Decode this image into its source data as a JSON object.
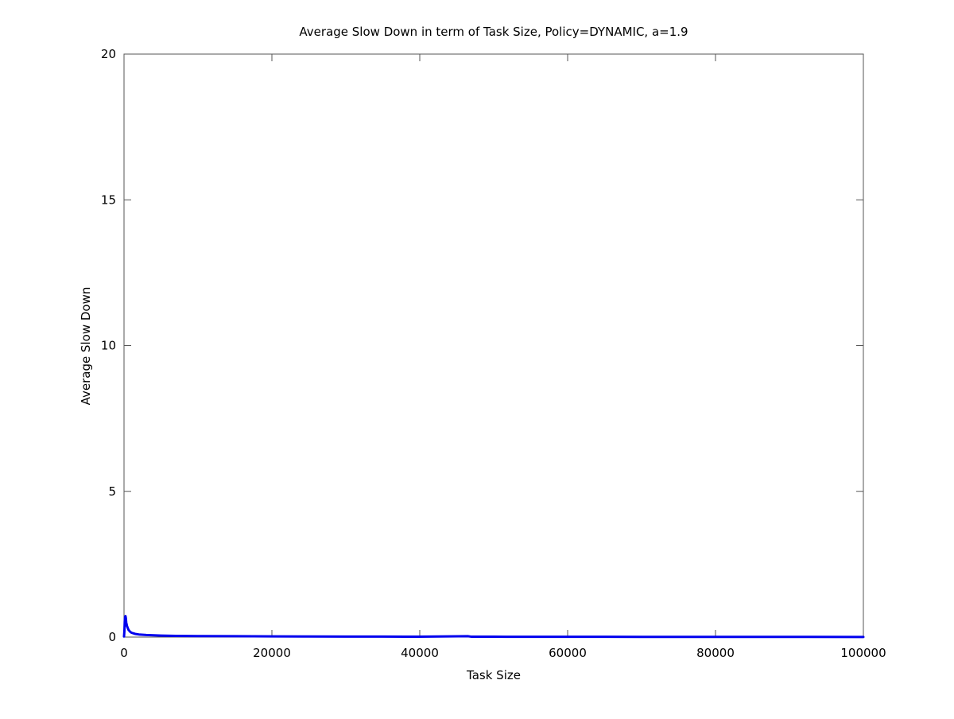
{
  "chart_data": {
    "type": "line",
    "title": "Average Slow Down in term of Task Size, Policy=DYNAMIC, a=1.9",
    "xlabel": "Task Size",
    "ylabel": "Average Slow Down",
    "xlim": [
      0,
      100000
    ],
    "ylim": [
      0,
      20
    ],
    "x_ticks": [
      0,
      20000,
      40000,
      60000,
      80000,
      100000
    ],
    "y_ticks": [
      0,
      5,
      10,
      15,
      20
    ],
    "grid": false,
    "legend": "none",
    "series": [
      {
        "color": "#0000ee",
        "points": [
          [
            0,
            0.02
          ],
          [
            50,
            0.2
          ],
          [
            100,
            0.55
          ],
          [
            150,
            0.7
          ],
          [
            200,
            0.72
          ],
          [
            250,
            0.65
          ],
          [
            300,
            0.5
          ],
          [
            400,
            0.38
          ],
          [
            600,
            0.25
          ],
          [
            800,
            0.19
          ],
          [
            1000,
            0.15
          ],
          [
            1500,
            0.11
          ],
          [
            2000,
            0.09
          ],
          [
            3000,
            0.07
          ],
          [
            4000,
            0.06
          ],
          [
            5000,
            0.05
          ],
          [
            7000,
            0.04
          ],
          [
            10000,
            0.035
          ],
          [
            15000,
            0.03
          ],
          [
            20000,
            0.025
          ],
          [
            25000,
            0.02
          ],
          [
            30000,
            0.018
          ],
          [
            35000,
            0.016
          ],
          [
            40000,
            0.014
          ],
          [
            46500,
            0.03
          ],
          [
            47000,
            0.012
          ],
          [
            50000,
            0.012
          ],
          [
            60000,
            0.01
          ],
          [
            70000,
            0.008
          ],
          [
            80000,
            0.007
          ],
          [
            90000,
            0.006
          ],
          [
            100000,
            0.005
          ]
        ]
      }
    ]
  }
}
